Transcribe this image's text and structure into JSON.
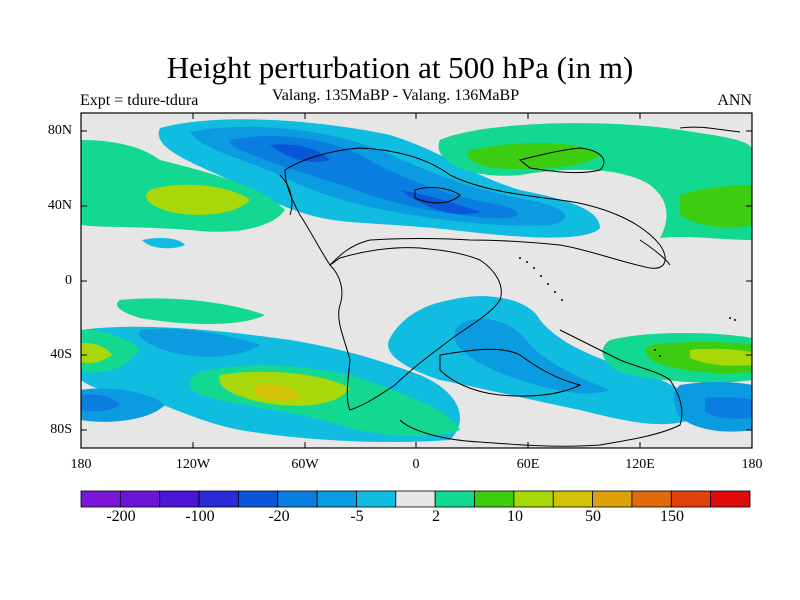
{
  "title": "Height perturbation at 500 hPa (in m)",
  "left_subtitle": "Expt = tdure-tdura",
  "center_subtitle": "Valang.  135MaBP - Valang.  136MaBP",
  "right_subtitle": "ANN",
  "lat_labels": [
    "80N",
    "40N",
    "0",
    "40S",
    "80S"
  ],
  "lon_labels": [
    "180",
    "120W",
    "60W",
    "0",
    "60E",
    "120E",
    "180"
  ],
  "colorbar": {
    "colors": [
      "#7a16d8",
      "#6a16d8",
      "#4b16d8",
      "#2a2ad8",
      "#0a55d8",
      "#0a7ee0",
      "#0b9be0",
      "#10bde0",
      "#e6e6e6",
      "#12d890",
      "#3ccc10",
      "#a8d80a",
      "#d4c20a",
      "#dca00a",
      "#e06a0a",
      "#e0400a",
      "#e00a0a"
    ],
    "labels": [
      "-200",
      "-100",
      "-20",
      "-5",
      "2",
      "10",
      "50",
      "150"
    ]
  }
}
